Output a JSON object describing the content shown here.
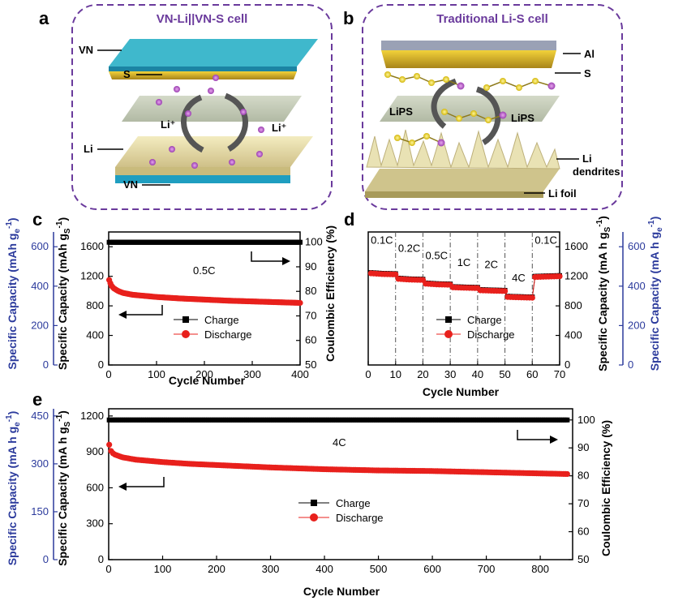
{
  "panels": {
    "a": {
      "letter": "a",
      "title": "VN-Li||VN-S cell",
      "labels": [
        "VN",
        "S",
        "Li",
        "VN"
      ],
      "li_plus": [
        "Li⁺",
        "Li⁺"
      ]
    },
    "b": {
      "letter": "b",
      "title": "Traditional Li-S cell",
      "labels": [
        "Al",
        "S",
        "LiPS",
        "LiPS",
        "Li",
        "dendrites",
        "Li foil"
      ]
    }
  },
  "colors": {
    "charge": "#000000",
    "discharge": "#e8201c",
    "blue_axis": "#2b3a9c",
    "frame": "#6a3a9c"
  },
  "chart_data": [
    {
      "id": "c",
      "letter": "c",
      "type": "scatter",
      "xlabel": "Cycle Number",
      "xlim": [
        0,
        400
      ],
      "xticks": [
        0,
        100,
        200,
        300,
        400
      ],
      "ylabel_left": "Specific Capacity (mAh gS-1)",
      "ylim_left": [
        0,
        1800
      ],
      "yticks_left": [
        0,
        400,
        800,
        1200,
        1600
      ],
      "ylabel_right": "Coulombic Efficiency (%)",
      "ylim_right": [
        50,
        104.2
      ],
      "yticks_right": [
        50,
        60,
        70,
        80,
        90,
        100
      ],
      "ylabel_far_left": "Specific Capacity (mAh ge-1)",
      "yticks_far_left": [
        0,
        200,
        400,
        600
      ],
      "annotation": "0.5C",
      "legend": [
        "Charge",
        "Discharge"
      ],
      "series": [
        {
          "name": "Charge",
          "axis": "right",
          "x": [
            1,
            20,
            50,
            100,
            150,
            200,
            250,
            300,
            350,
            400
          ],
          "values": [
            100,
            100,
            100,
            100,
            100,
            100,
            100,
            100,
            100,
            100
          ]
        },
        {
          "name": "Discharge",
          "axis": "left",
          "x": [
            1,
            5,
            10,
            20,
            30,
            50,
            75,
            100,
            150,
            200,
            250,
            300,
            350,
            400
          ],
          "values": [
            1150,
            1080,
            1040,
            1000,
            975,
            950,
            935,
            920,
            900,
            885,
            870,
            860,
            850,
            840
          ]
        }
      ]
    },
    {
      "id": "d",
      "letter": "d",
      "type": "scatter",
      "xlabel": "Cycle Number",
      "xlim": [
        0,
        70
      ],
      "xticks": [
        0,
        10,
        20,
        30,
        40,
        50,
        60,
        70
      ],
      "ylabel_right": "Specific Capacity (mA h gS-1)",
      "ylim_right": [
        0,
        1800
      ],
      "yticks_right": [
        0,
        400,
        800,
        1200,
        1600
      ],
      "ylabel_far_right": "Specific Capacity (mA h ge-1)",
      "yticks_far_right": [
        0,
        200,
        400,
        600
      ],
      "rate_labels": [
        "0.1C",
        "0.2C",
        "0.5C",
        "1C",
        "2C",
        "4C",
        "0.1C"
      ],
      "legend": [
        "Charge",
        "Discharge"
      ],
      "series": [
        {
          "name": "Charge",
          "x": [
            1,
            5,
            10,
            11,
            15,
            20,
            21,
            25,
            30,
            31,
            35,
            40,
            41,
            45,
            50,
            51,
            55,
            60,
            61,
            65,
            70
          ],
          "values": [
            1250,
            1240,
            1235,
            1175,
            1165,
            1160,
            1110,
            1100,
            1095,
            1060,
            1055,
            1050,
            1020,
            1015,
            1010,
            930,
            925,
            920,
            1200,
            1205,
            1210
          ]
        },
        {
          "name": "Discharge",
          "x": [
            1,
            5,
            10,
            11,
            15,
            20,
            21,
            25,
            30,
            31,
            35,
            40,
            41,
            45,
            50,
            51,
            55,
            60,
            61,
            65,
            70
          ],
          "values": [
            1240,
            1230,
            1225,
            1165,
            1155,
            1150,
            1100,
            1090,
            1085,
            1050,
            1045,
            1040,
            1010,
            1005,
            1000,
            920,
            915,
            910,
            1190,
            1195,
            1200
          ]
        }
      ]
    },
    {
      "id": "e",
      "letter": "e",
      "type": "scatter",
      "xlabel": "Cycle Number",
      "xlim": [
        0,
        860
      ],
      "xticks": [
        0,
        100,
        200,
        300,
        400,
        500,
        600,
        700,
        800
      ],
      "ylabel_left": "Specific Capacity (mA h gS-1)",
      "ylim_left": [
        0,
        1260
      ],
      "yticks_left": [
        0,
        300,
        600,
        900,
        1200
      ],
      "ylabel_right": "Coulombic Efficiency (%)",
      "ylim_right": [
        50,
        104
      ],
      "yticks_right": [
        50,
        60,
        70,
        80,
        90,
        100
      ],
      "ylabel_far_left": "Specific Capacity (mA h ge-1)",
      "yticks_far_left": [
        0,
        150,
        300,
        450
      ],
      "annotation": "4C",
      "legend": [
        "Charge",
        "Discharge"
      ],
      "series": [
        {
          "name": "Charge",
          "axis": "right",
          "x": [
            1,
            100,
            200,
            300,
            400,
            500,
            600,
            700,
            800,
            850
          ],
          "values": [
            100,
            100,
            100,
            100,
            100,
            100,
            100,
            100,
            100,
            100
          ]
        },
        {
          "name": "Discharge",
          "axis": "left",
          "x": [
            1,
            5,
            10,
            25,
            50,
            100,
            150,
            200,
            300,
            400,
            500,
            600,
            700,
            800,
            850
          ],
          "values": [
            960,
            900,
            880,
            855,
            835,
            815,
            800,
            790,
            770,
            755,
            745,
            740,
            730,
            720,
            715
          ]
        }
      ]
    }
  ]
}
